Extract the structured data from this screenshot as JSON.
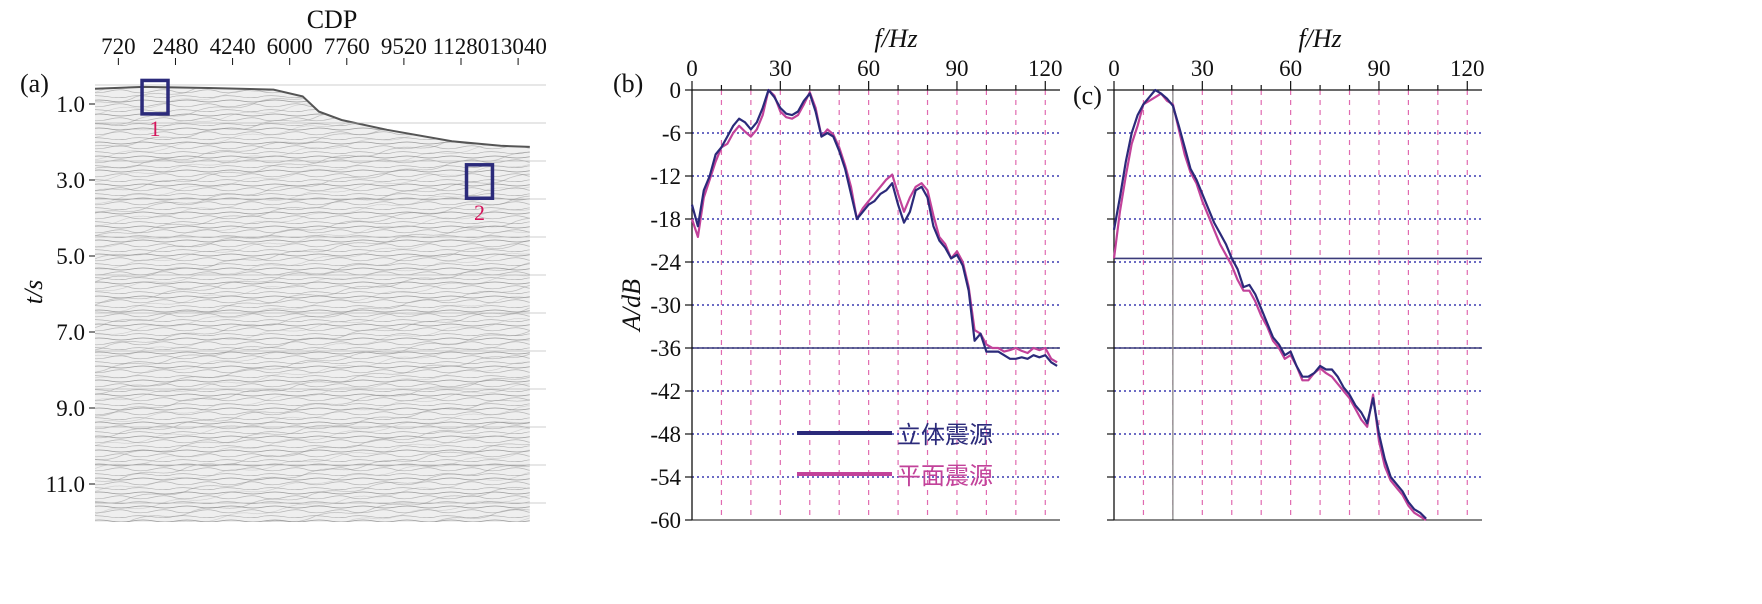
{
  "panels": {
    "a": {
      "label": "(a)"
    },
    "b": {
      "label": "(b)"
    },
    "c": {
      "label": "(c)"
    }
  },
  "chart_data": [
    {
      "type": "heatmap",
      "panel": "a",
      "xlabel": "CDP",
      "ylabel": "t/s",
      "x_ticks": [
        "720",
        "2480",
        "4240",
        "6000",
        "7760",
        "9520",
        "11280",
        "13040"
      ],
      "y_ticks": [
        "1.0",
        "3.0",
        "5.0",
        "7.0",
        "9.0",
        "11.0"
      ],
      "xlim": [
        0,
        13900
      ],
      "ylim": [
        0,
        12
      ],
      "boxes": [
        {
          "label": "1",
          "cdp": [
            1450,
            2250
          ],
          "t": [
            0.38,
            1.26
          ],
          "color": "#2b2a7a"
        },
        {
          "label": "2",
          "cdp": [
            11450,
            12250
          ],
          "t": [
            2.6,
            3.48
          ],
          "color": "#2b2a7a"
        }
      ],
      "box_label_color": "#d4145a",
      "seafloor": {
        "cdp": [
          0,
          1500,
          3500,
          5500,
          6400,
          6900,
          7600,
          9000,
          11000,
          12500,
          13400
        ],
        "t": [
          0.6,
          0.55,
          0.58,
          0.62,
          0.8,
          1.2,
          1.42,
          1.68,
          1.98,
          2.1,
          2.13
        ]
      }
    },
    {
      "type": "line",
      "panel": "b",
      "xlabel": "f/Hz",
      "ylabel": "A/dB",
      "xlim": [
        0,
        125
      ],
      "ylim": [
        -60,
        0
      ],
      "x_ticks": [
        "0",
        "30",
        "60",
        "90",
        "120"
      ],
      "y_ticks": [
        "0",
        "-6",
        "-12",
        "-18",
        "-24",
        "-30",
        "-36",
        "-42",
        "-48",
        "-54",
        "-60"
      ],
      "grid": true,
      "reference_line_db": -36,
      "legend": "lower-left",
      "series": [
        {
          "name": "立体震源",
          "color": "#2b2a7a",
          "x": [
            0,
            2,
            4,
            6,
            8,
            10,
            12,
            14,
            16,
            18,
            20,
            22,
            24,
            26,
            28,
            30,
            32,
            34,
            36,
            38,
            40,
            42,
            44,
            46,
            48,
            50,
            52,
            54,
            56,
            58,
            60,
            62,
            64,
            66,
            68,
            70,
            72,
            74,
            76,
            78,
            80,
            82,
            84,
            86,
            88,
            90,
            92,
            94,
            96,
            98,
            100,
            102,
            104,
            106,
            108,
            110,
            112,
            114,
            116,
            118,
            120,
            122,
            124
          ],
          "y": [
            -16,
            -19,
            -14,
            -12,
            -9,
            -8,
            -6.5,
            -5,
            -4,
            -4.5,
            -5.5,
            -4.5,
            -2.5,
            0,
            -1,
            -2.5,
            -3.3,
            -3.5,
            -3,
            -1.5,
            -0.5,
            -3,
            -6.5,
            -6,
            -6.5,
            -8.5,
            -11,
            -14.5,
            -18,
            -17,
            -16,
            -15.5,
            -14.5,
            -14,
            -13,
            -16,
            -18.5,
            -17,
            -14,
            -13.5,
            -15,
            -19,
            -21,
            -22,
            -23.5,
            -23,
            -24.5,
            -28,
            -35,
            -34,
            -36.5,
            -36.5,
            -36.5,
            -37,
            -37.5,
            -37.5,
            -37.3,
            -37.5,
            -37,
            -37.3,
            -37,
            -38,
            -38.5
          ]
        },
        {
          "name": "平面震源",
          "color": "#c2429a",
          "x": [
            0,
            2,
            4,
            6,
            8,
            10,
            12,
            14,
            16,
            18,
            20,
            22,
            24,
            26,
            28,
            30,
            32,
            34,
            36,
            38,
            40,
            42,
            44,
            46,
            48,
            50,
            52,
            54,
            56,
            58,
            60,
            62,
            64,
            66,
            68,
            70,
            72,
            74,
            76,
            78,
            80,
            82,
            84,
            86,
            88,
            90,
            92,
            94,
            96,
            98,
            100,
            102,
            104,
            106,
            108,
            110,
            112,
            114,
            116,
            118,
            120,
            122,
            124
          ],
          "y": [
            -18,
            -20.5,
            -15,
            -12.5,
            -10,
            -8,
            -7.5,
            -6,
            -5,
            -5.8,
            -6.5,
            -5.5,
            -3.5,
            0,
            -0.8,
            -3,
            -3.8,
            -4,
            -3.5,
            -2,
            -0.3,
            -2.5,
            -6.5,
            -5.5,
            -6.2,
            -8,
            -10.5,
            -13.5,
            -18,
            -16.5,
            -15.5,
            -14.5,
            -13.5,
            -12.5,
            -11.8,
            -14.5,
            -17,
            -15,
            -13.5,
            -13,
            -14,
            -17.5,
            -20.5,
            -21.5,
            -23.5,
            -22.5,
            -24,
            -27.5,
            -33.5,
            -34,
            -35.5,
            -36,
            -36,
            -36.5,
            -36.3,
            -36,
            -36.4,
            -36.7,
            -36,
            -36.3,
            -36,
            -37.5,
            -38
          ]
        }
      ]
    },
    {
      "type": "line",
      "panel": "c",
      "xlabel": "f/Hz",
      "xlim": [
        0,
        125
      ],
      "ylim": [
        -60,
        0
      ],
      "x_ticks": [
        "0",
        "30",
        "60",
        "90",
        "120"
      ],
      "grid": true,
      "reference_lines_db": [
        -23.5,
        -36
      ],
      "vertical_line_hz": 20,
      "series": [
        {
          "name": "立体震源",
          "color": "#2b2a7a",
          "x": [
            0,
            2,
            4,
            6,
            8,
            10,
            12,
            14,
            16,
            18,
            20,
            22,
            24,
            26,
            28,
            30,
            32,
            34,
            36,
            38,
            40,
            42,
            44,
            46,
            48,
            50,
            52,
            54,
            56,
            58,
            60,
            62,
            64,
            66,
            68,
            70,
            72,
            74,
            76,
            78,
            80,
            82,
            84,
            86,
            88,
            90,
            92,
            94,
            96,
            98,
            100,
            102,
            104,
            106
          ],
          "y": [
            -19.5,
            -15,
            -10,
            -6,
            -3.5,
            -2,
            -1,
            0,
            -0.5,
            -1.2,
            -2.2,
            -5,
            -8,
            -11,
            -12.5,
            -14.5,
            -16.5,
            -18.5,
            -20,
            -21.5,
            -23.5,
            -25,
            -27.5,
            -27.2,
            -28.5,
            -30.5,
            -32.5,
            -34.5,
            -35.5,
            -37,
            -36.5,
            -38.5,
            -40,
            -40,
            -39.5,
            -38.5,
            -39,
            -39,
            -40,
            -41.5,
            -42.5,
            -44,
            -45,
            -46.5,
            -43,
            -48,
            -51.5,
            -54,
            -55,
            -56,
            -57.5,
            -58.5,
            -59,
            -59.8
          ]
        },
        {
          "name": "平面震源",
          "color": "#c2429a",
          "x": [
            0,
            2,
            4,
            6,
            8,
            10,
            12,
            14,
            16,
            18,
            20,
            22,
            24,
            26,
            28,
            30,
            32,
            34,
            36,
            38,
            40,
            42,
            44,
            46,
            48,
            50,
            52,
            54,
            56,
            58,
            60,
            62,
            64,
            66,
            68,
            70,
            72,
            74,
            76,
            78,
            80,
            82,
            84,
            86,
            88,
            90,
            92,
            94,
            96,
            98,
            100,
            102,
            104,
            106
          ],
          "y": [
            -23.5,
            -17,
            -12,
            -7.5,
            -5,
            -2,
            -1.5,
            -1,
            -0.5,
            -1.5,
            -2,
            -5.5,
            -9,
            -11.5,
            -13,
            -15.5,
            -17.5,
            -19.5,
            -21.5,
            -23,
            -24.5,
            -26.5,
            -28,
            -28,
            -29.5,
            -31.5,
            -33,
            -35,
            -36,
            -37.5,
            -37,
            -38.5,
            -40.5,
            -40.5,
            -39.5,
            -38.8,
            -39.5,
            -40,
            -41,
            -42,
            -43,
            -44.5,
            -46,
            -47,
            -42.5,
            -49,
            -52.5,
            -54.5,
            -55.5,
            -56.5,
            -58,
            -59,
            -59.5,
            -60
          ]
        }
      ]
    }
  ]
}
